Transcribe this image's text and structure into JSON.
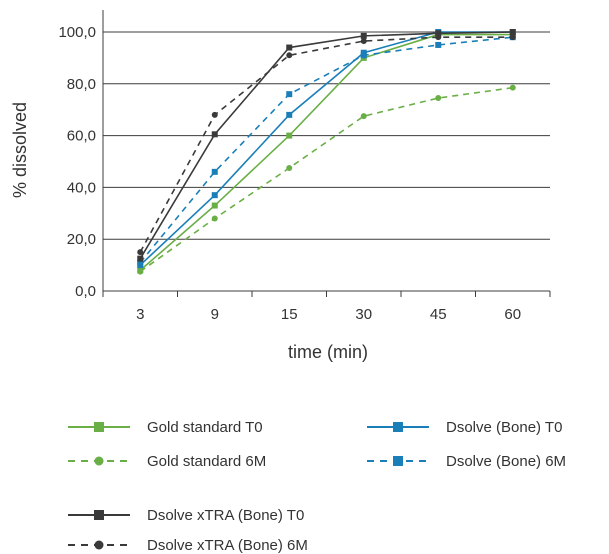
{
  "chart_data": {
    "type": "line",
    "title": "",
    "xlabel": "time (min)",
    "ylabel": "% dissolved",
    "categories": [
      "3",
      "9",
      "15",
      "30",
      "45",
      "60"
    ],
    "yticks": [
      "0,0",
      "20,0",
      "40,0",
      "60,0",
      "80,0",
      "100,0"
    ],
    "ylim": [
      0,
      100
    ],
    "grid": true,
    "legend_position": "bottom",
    "series": [
      {
        "name": "Gold standard T0",
        "color": "#6aaf46",
        "style": "solid",
        "marker": "square",
        "values": [
          8,
          33,
          60,
          90,
          99,
          99
        ]
      },
      {
        "name": "Gold standard 6M",
        "color": "#6aaf46",
        "style": "dashed",
        "marker": "circle",
        "values": [
          7.5,
          28,
          47.5,
          67.5,
          74.5,
          78.5
        ]
      },
      {
        "name": "Dsolve (Bone) T0",
        "color": "#1a7fb8",
        "style": "solid",
        "marker": "square",
        "values": [
          10,
          37,
          68,
          92,
          100,
          100
        ]
      },
      {
        "name": "Dsolve (Bone) 6M",
        "color": "#1a7fb8",
        "style": "dashed",
        "marker": "square",
        "values": [
          11,
          46,
          76,
          91,
          95,
          98
        ]
      },
      {
        "name": "Dsolve xTRA (Bone) T0",
        "color": "#3a3a3a",
        "style": "solid",
        "marker": "square",
        "values": [
          12.5,
          60.5,
          94,
          98.5,
          99.5,
          100
        ]
      },
      {
        "name": "Dsolve xTRA (Bone) 6M",
        "color": "#3a3a3a",
        "style": "dashed",
        "marker": "circle",
        "values": [
          15,
          68,
          91,
          96.5,
          98,
          98
        ]
      }
    ]
  }
}
